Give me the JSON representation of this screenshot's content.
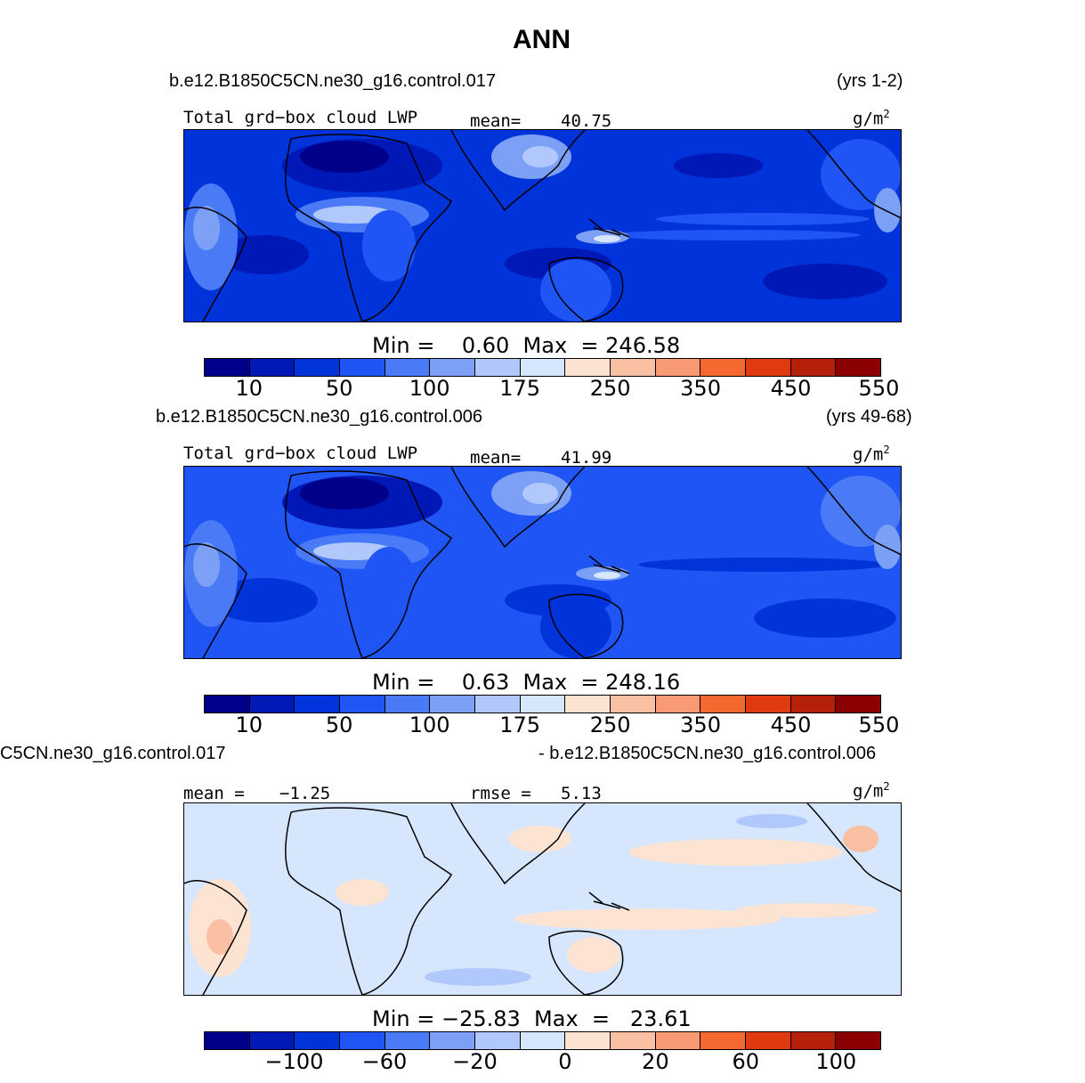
{
  "title": "ANN",
  "colors": {
    "scale": [
      "#00008b",
      "#0018b5",
      "#0033d9",
      "#1f55f5",
      "#4a7af5",
      "#7ba0f5",
      "#b0c8fb",
      "#d6e6fd",
      "#fde4d2",
      "#fac0a4",
      "#f99a76",
      "#f5682f",
      "#e03a10",
      "#b5200a",
      "#8b0000"
    ]
  },
  "panel1": {
    "case": "b.e12.B1850C5CN.ne30_g16.control.017",
    "years": "(yrs 1-2)",
    "field": "Total grd−box cloud LWP",
    "mean_label": "mean=",
    "mean": "40.75",
    "units": "g/m",
    "units_exp": "2",
    "minmax": "Min =    0.60  Max  = 246.58",
    "ticks": [
      "10",
      "50",
      "100",
      "175",
      "250",
      "350",
      "450",
      "550"
    ]
  },
  "panel2": {
    "case": "b.e12.B1850C5CN.ne30_g16.control.006",
    "years": "(yrs 49-68)",
    "field": "Total grd−box cloud LWP",
    "mean_label": "mean=",
    "mean": "41.99",
    "units": "g/m",
    "units_exp": "2",
    "minmax": "Min =    0.63  Max  = 248.16",
    "ticks": [
      "10",
      "50",
      "100",
      "175",
      "250",
      "350",
      "450",
      "550"
    ]
  },
  "panel3": {
    "case_left": "C5CN.ne30_g16.control.017",
    "case_right": "- b.e12.B1850C5CN.ne30_g16.control.006",
    "mean_label": "mean =",
    "mean": "−1.25",
    "rmse_label": "rmse =",
    "rmse": "5.13",
    "units": "g/m",
    "units_exp": "2",
    "minmax": "Min = −25.83  Max  =   23.61",
    "ticks": [
      "−100",
      "−60",
      "−20",
      "0",
      "20",
      "60",
      "100"
    ]
  }
}
